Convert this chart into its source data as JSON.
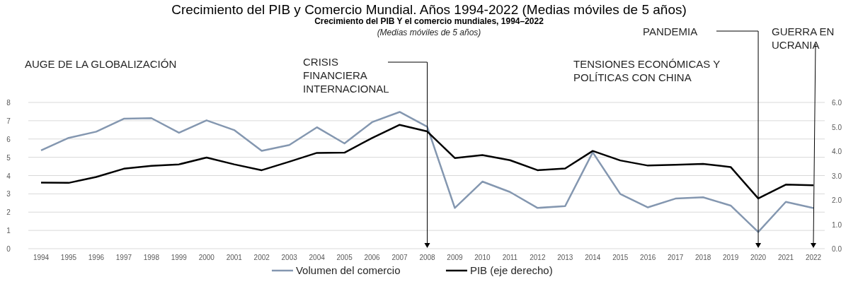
{
  "chart_data": {
    "type": "line",
    "title": "Crecimiento del PIB y Comercio Mundial. Años 1994-2022 (Medias móviles de 5 años)",
    "subtitle": "Crecimiento del PIB Y el comercio mundiales, 1994–2022",
    "categories": [
      "1994",
      "1995",
      "1996",
      "1997",
      "1998",
      "1999",
      "2000",
      "2001",
      "2002",
      "2003",
      "2004",
      "2005",
      "2006",
      "2007",
      "2008",
      "2009",
      "2010",
      "2011",
      "2012",
      "2013",
      "2014",
      "2015",
      "2016",
      "2017",
      "2018",
      "2019",
      "2020",
      "2021",
      "2022"
    ],
    "series": [
      {
        "name": "Volumen del comercio",
        "color": "#8497b0",
        "values": [
          5.38,
          6.06,
          6.4,
          7.11,
          7.14,
          6.34,
          7.02,
          6.49,
          5.35,
          5.67,
          6.64,
          5.76,
          6.92,
          7.48,
          6.67,
          2.23,
          3.67,
          3.1,
          2.23,
          2.33,
          5.27,
          2.99,
          2.26,
          2.74,
          2.81,
          2.36,
          0.91,
          2.56,
          2.22
        ]
      },
      {
        "name": "PIB (eje derecho)",
        "color": "#000000",
        "axis": "y2",
        "values": [
          2.71,
          2.7,
          2.94,
          3.28,
          3.4,
          3.46,
          3.74,
          3.46,
          3.22,
          3.57,
          3.93,
          3.94,
          4.54,
          5.08,
          4.81,
          3.72,
          3.84,
          3.63,
          3.22,
          3.29,
          4.01,
          3.62,
          3.41,
          3.44,
          3.48,
          3.35,
          2.06,
          2.63,
          2.6
        ]
      }
    ],
    "ylim": [
      0,
      8
    ],
    "yticks": [
      0,
      1,
      2,
      3,
      4,
      5,
      6,
      7,
      8
    ],
    "y2lim": [
      0,
      6
    ],
    "y2ticks": [
      {
        "value": 0,
        "label": "0.0"
      },
      {
        "value": 1,
        "label": "1.0"
      },
      {
        "value": 2,
        "label": "2.0"
      },
      {
        "value": 3,
        "label": "3.0"
      },
      {
        "value": 4,
        "label": "4.0"
      },
      {
        "value": 5,
        "label": "5.0"
      },
      {
        "value": 6,
        "label": "6.0"
      }
    ],
    "grid": "y",
    "legend": "bottom",
    "marker": "none",
    "line_style": "solid",
    "annotations": [
      "(Medias móviles de 5 años)",
      "AUGE DE LA GLOBALIZACIÓN",
      "CRISIS FINANCIERA INTERNACIONAL",
      "TENSIONES ECONÓMICAS Y POLÍTICAS CON CHINA",
      "PANDEMIA",
      "GUERRA EN UCRANIA"
    ]
  }
}
